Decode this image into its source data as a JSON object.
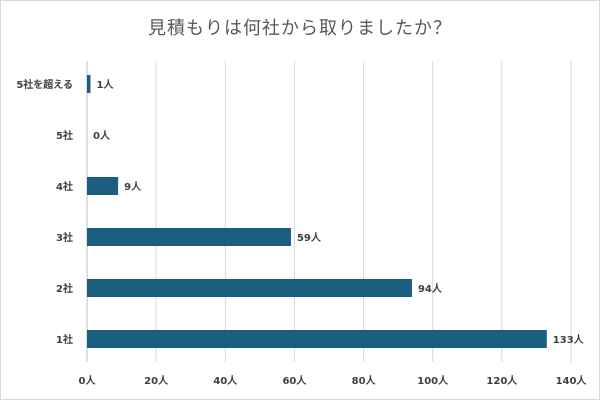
{
  "chart_data": {
    "type": "bar",
    "orientation": "horizontal",
    "title": "見積もりは何社から取りましたか？",
    "categories": [
      "5社を超える",
      "5社",
      "4社",
      "3社",
      "2社",
      "1社"
    ],
    "values": [
      1,
      0,
      9,
      59,
      94,
      133
    ],
    "data_labels": [
      "1人",
      "0人",
      "9人",
      "59人",
      "94人",
      "133人"
    ],
    "x_ticks": [
      "0人",
      "20人",
      "40人",
      "60人",
      "80人",
      "100人",
      "120人",
      "140人"
    ],
    "x_tick_values": [
      0,
      20,
      40,
      60,
      80,
      100,
      120,
      140
    ],
    "xlim": [
      0,
      140
    ],
    "grid": "vertical",
    "bar_color": "#1b5f80"
  }
}
